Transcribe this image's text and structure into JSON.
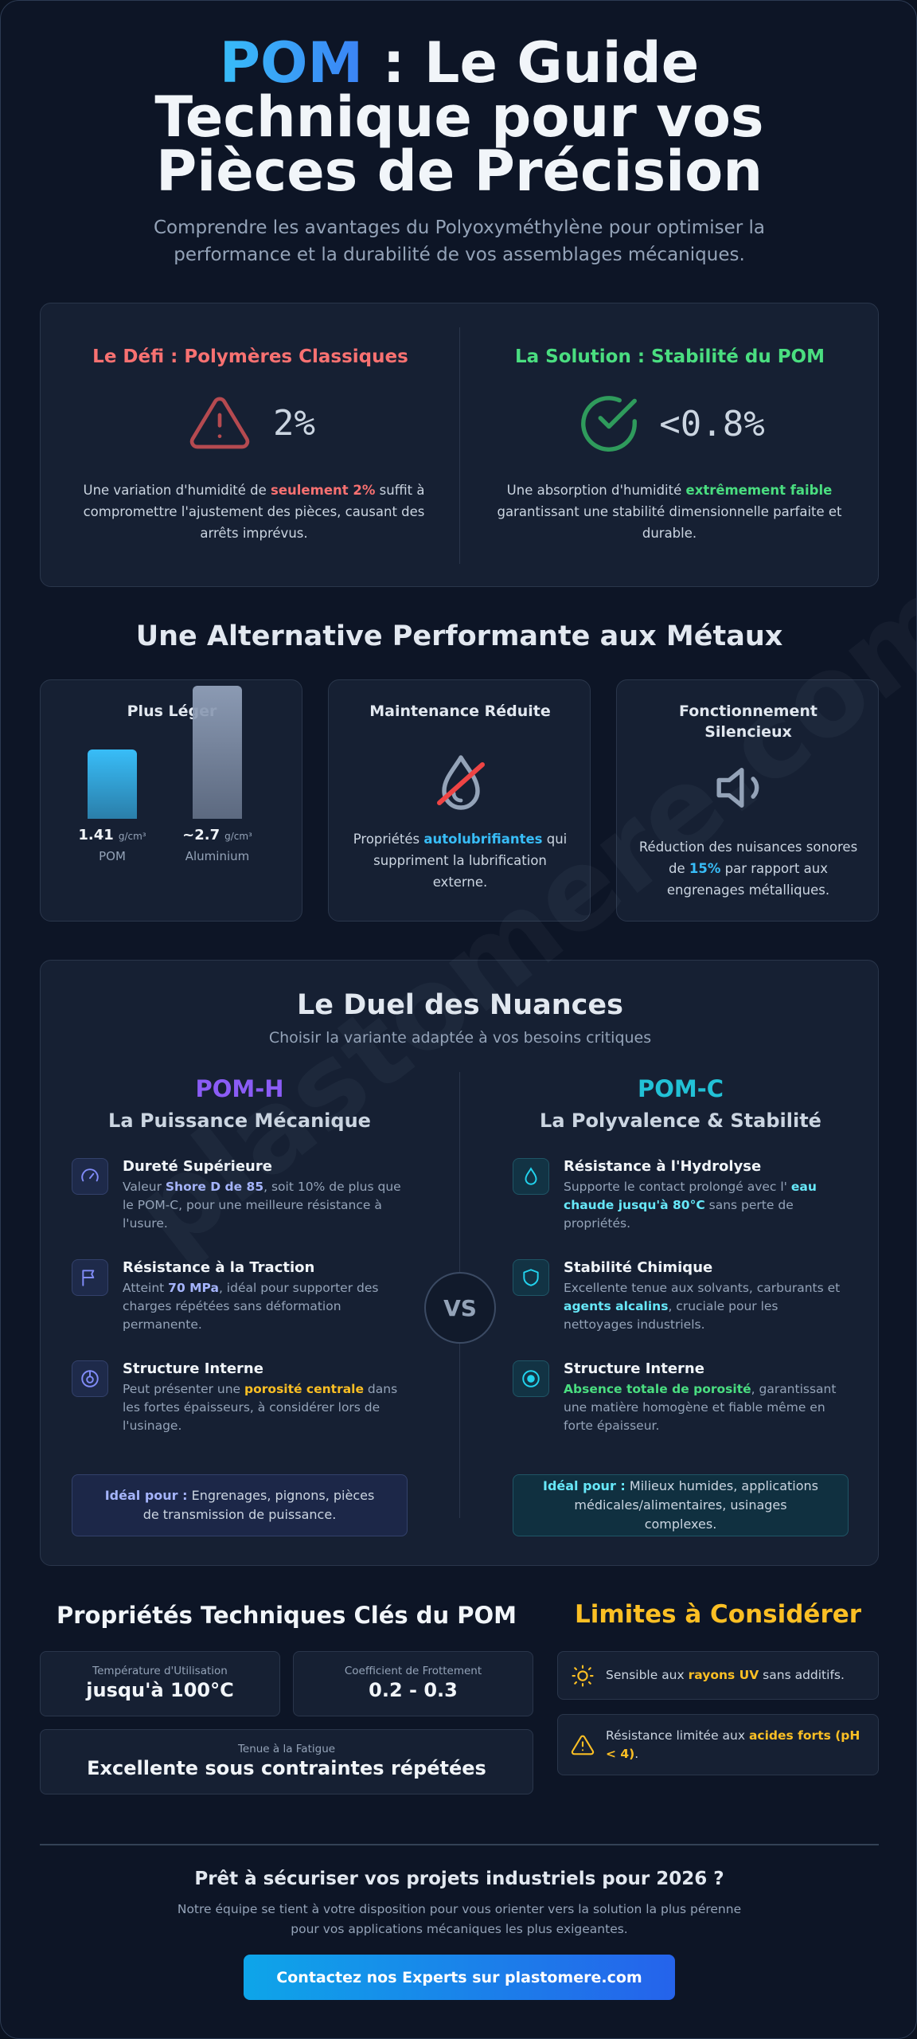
{
  "watermark": "plastomere.com",
  "header": {
    "brand": "POM",
    "title": " : Le Guide Technique pour vos Pièces de Précision",
    "subtitle": "Comprendre les avantages du Polyoxyméthylène pour optimiser la performance et la durabilité de vos assemblages mécaniques."
  },
  "challenge": {
    "problem": {
      "title": "Le Défi : Polymères Classiques",
      "stat": "2%",
      "text": [
        "Une variation d'humidité de ",
        {
          "text": "seulement 2%",
          "color": "#f87171"
        },
        " suffit à compromettre l'ajustement des pièces, causant des arrêts imprévus."
      ]
    },
    "solution": {
      "title": "La Solution : Stabilité du POM",
      "stat": "<0.8%",
      "text": [
        "Une absorption d'humidité ",
        {
          "text": "extrêmement faible",
          "color": "#4ade80"
        },
        " garantissant une stabilité dimensionnelle parfaite et durable."
      ]
    }
  },
  "alternative": {
    "title": "Une Alternative Performante aux Métaux",
    "weight": {
      "title": "Plus Léger",
      "bars": [
        {
          "value": 1.41,
          "label": "1.41",
          "unit": "g/cm³",
          "name": "POM",
          "color": "#38bdf8"
        },
        {
          "value": 2.7,
          "label": "~2.7",
          "unit": "g/cm³",
          "name": "Aluminium",
          "color": "#8b9ab3"
        }
      ]
    },
    "maintenance": {
      "title": "Maintenance Réduite",
      "text": [
        "Propriétés ",
        {
          "text": "autolubrifiantes",
          "color": "#38bdf8"
        },
        " qui suppriment la lubrification externe."
      ]
    },
    "silence": {
      "title": "Fonctionnement Silencieux",
      "text": [
        "Réduction des nuisances sonores de ",
        {
          "text": "15%",
          "color": "#38bdf8"
        },
        " par rapport aux engrenages métalliques."
      ]
    }
  },
  "duel": {
    "title": "Le Duel des Nuances",
    "subtitle": "Choisir la variante adaptée à vos besoins critiques",
    "vs": "VS",
    "variants": [
      {
        "name": "POM-H",
        "subtitle": "La Puissance Mécanique",
        "color": "#8b5cf6",
        "features": [
          {
            "title": "Dureté Supérieure",
            "text": [
              "Valeur ",
              {
                "text": "Shore D de 85",
                "color": "#a5b4fc"
              },
              ", soit 10% de plus que le POM-C, pour une meilleure résistance à l'usure."
            ]
          },
          {
            "title": "Résistance à la Traction",
            "text": [
              "Atteint ",
              {
                "text": "70 MPa",
                "color": "#a5b4fc"
              },
              ", idéal pour supporter des charges répétées sans déformation permanente."
            ]
          },
          {
            "title": "Structure Interne",
            "text": [
              "Peut présenter une ",
              {
                "text": "porosité centrale",
                "color": "#fbbf24"
              },
              " dans les fortes épaisseurs, à considérer lors de l'usinage."
            ]
          }
        ],
        "ideal": {
          "label": "Idéal pour :",
          "text": " Engrenages, pignons, pièces de transmission de puissance."
        }
      },
      {
        "name": "POM-C",
        "subtitle": "La Polyvalence & Stabilité",
        "color": "#22c1d6",
        "features": [
          {
            "title": "Résistance à l'Hydrolyse",
            "text": [
              "Supporte le contact prolongé avec l' ",
              {
                "text": "eau chaude jusqu'à 80°C",
                "color": "#67e8f9"
              },
              " sans perte de propriétés."
            ]
          },
          {
            "title": "Stabilité Chimique",
            "text": [
              "Excellente tenue aux solvants, carburants et ",
              {
                "text": "agents alcalins",
                "color": "#67e8f9"
              },
              ", cruciale pour les nettoyages industriels."
            ]
          },
          {
            "title": "Structure Interne",
            "text": [
              {
                "text": "Absence totale de porosité",
                "color": "#4ade80"
              },
              ", garantissant une matière homogène et fiable même en forte épaisseur."
            ]
          }
        ],
        "ideal": {
          "label": "Idéal pour :",
          "text": " Milieux humides, applications médicales/alimentaires, usinages complexes."
        }
      }
    ]
  },
  "properties": {
    "title": "Propriétés Techniques Clés du POM",
    "items": [
      {
        "label": "Température d'Utilisation",
        "value": "jusqu'à 100°C"
      },
      {
        "label": "Coefficient de Frottement",
        "value": "0.2 - 0.3"
      },
      {
        "label": "Tenue à la Fatigue",
        "value": "Excellente sous contraintes répétées"
      }
    ]
  },
  "limits": {
    "title": "Limites à Considérer",
    "items": [
      {
        "text": [
          "Sensible aux ",
          {
            "text": "rayons UV",
            "color": "#fbbf24"
          },
          " sans additifs."
        ]
      },
      {
        "text": [
          "Résistance limitée aux ",
          {
            "text": "acides forts (pH < 4)",
            "color": "#fbbf24"
          },
          "."
        ]
      }
    ]
  },
  "cta": {
    "title": "Prêt à sécuriser vos projets industriels pour 2026 ?",
    "text": "Notre équipe se tient à votre disposition pour vous orienter vers la solution la plus pérenne pour vos applications mécaniques les plus exigeantes.",
    "button": "Contactez nos Experts sur plastomere.com"
  }
}
